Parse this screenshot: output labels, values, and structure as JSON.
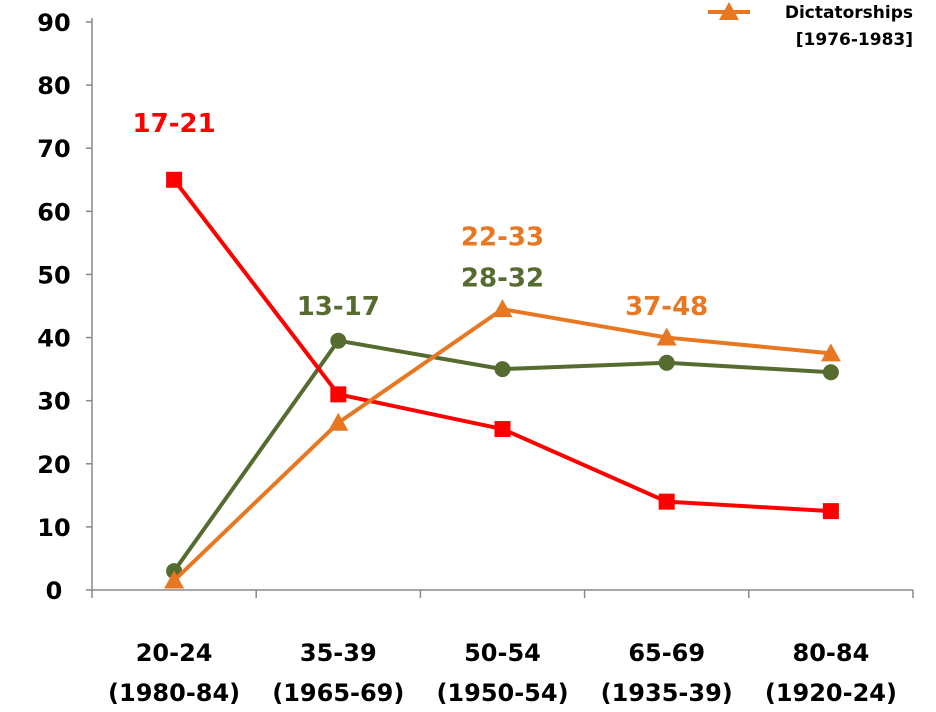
{
  "chart_data": {
    "type": "line",
    "categories": [
      [
        "20-24",
        "(1980-84)"
      ],
      [
        "35-39",
        "(1965-69)"
      ],
      [
        "50-54",
        "(1950-54)"
      ],
      [
        "65-69",
        "(1935-39)"
      ],
      [
        "80-84",
        "(1920-24)"
      ]
    ],
    "ylim": [
      0,
      90
    ],
    "yticks": [
      0,
      10,
      20,
      30,
      40,
      50,
      60,
      70,
      80,
      90
    ],
    "grid": false,
    "legend_position": "top-right",
    "series": [
      {
        "values": [
          65,
          31,
          25.5,
          14,
          12.5
        ],
        "color": "#ff0000",
        "marker": "square"
      },
      {
        "values": [
          3,
          39.5,
          35,
          36,
          34.5
        ],
        "color": "#556b2f",
        "marker": "circle"
      },
      {
        "name": "Dictatorships [1976-1983]",
        "legend_lines": [
          "Dictatorships",
          "[1976-1983]"
        ],
        "values": [
          1.5,
          26.5,
          44.5,
          40,
          37.5
        ],
        "color": "#e87722",
        "marker": "triangle"
      }
    ],
    "annotations": [
      {
        "text": "17-21",
        "series": 0,
        "category": 0,
        "y": 74,
        "color": "#ff0000"
      },
      {
        "text": "13-17",
        "series": 1,
        "category": 1,
        "y": 45,
        "color": "#556b2f"
      },
      {
        "text": "22-33",
        "series": 2,
        "category": 2,
        "y": 56,
        "color": "#e87722"
      },
      {
        "text": "28-32",
        "series": 1,
        "category": 2,
        "y": 49.5,
        "color": "#556b2f"
      },
      {
        "text": "37-48",
        "series": 2,
        "category": 3,
        "y": 45,
        "color": "#e87722"
      }
    ]
  }
}
